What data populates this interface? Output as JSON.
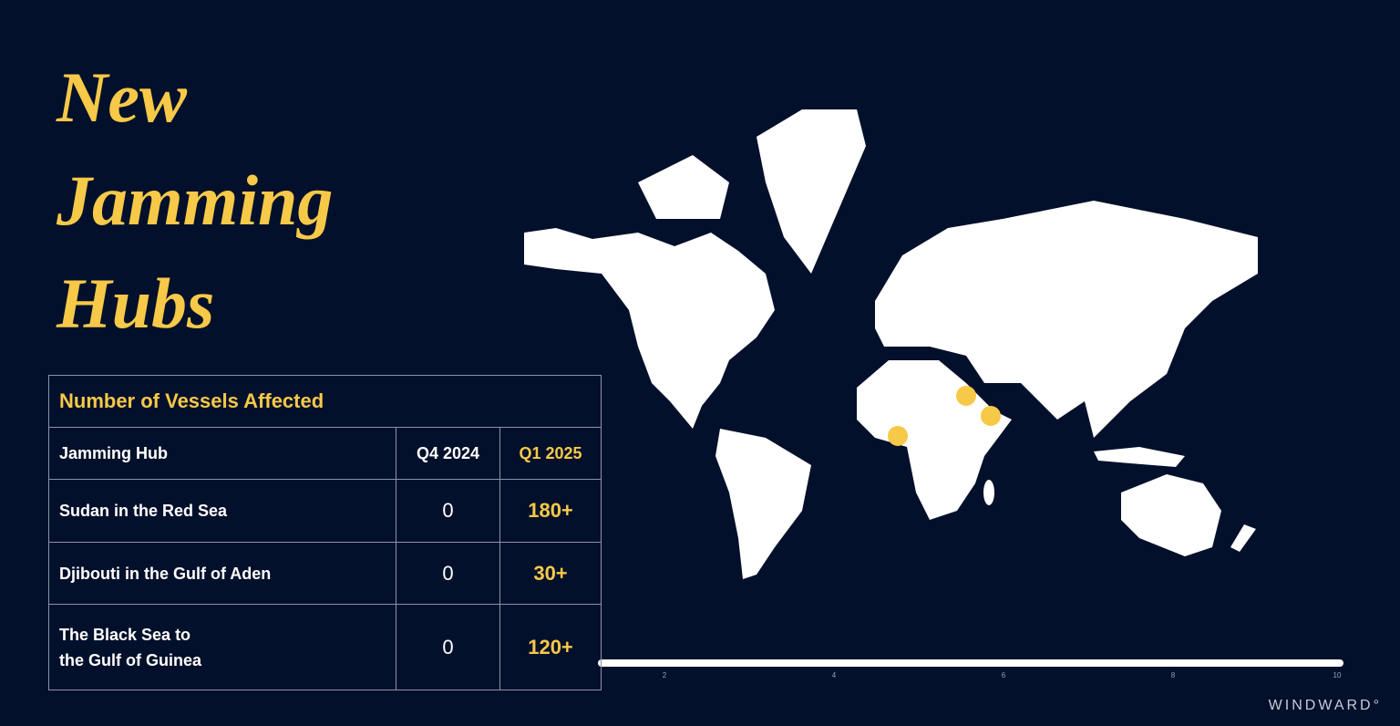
{
  "header": {
    "title_lines": [
      "New",
      "Jamming",
      "Hubs"
    ]
  },
  "table": {
    "title": "Number of Vessels Affected",
    "columns": [
      "Jamming Hub",
      "Q4 2024",
      "Q1 2025"
    ],
    "rows": [
      [
        [
          "Sudan in the Red Sea"
        ],
        "0",
        "180+"
      ],
      [
        [
          "Djibouti in the Gulf of Aden"
        ],
        "0",
        "30+"
      ],
      [
        [
          "The Black Sea to",
          "the Gulf of Guinea"
        ],
        "0",
        "120+"
      ]
    ]
  },
  "scale_bar": {
    "ticks": [
      "2",
      "4",
      "6",
      "8",
      "10"
    ]
  },
  "brand": "WINDWARD°"
}
